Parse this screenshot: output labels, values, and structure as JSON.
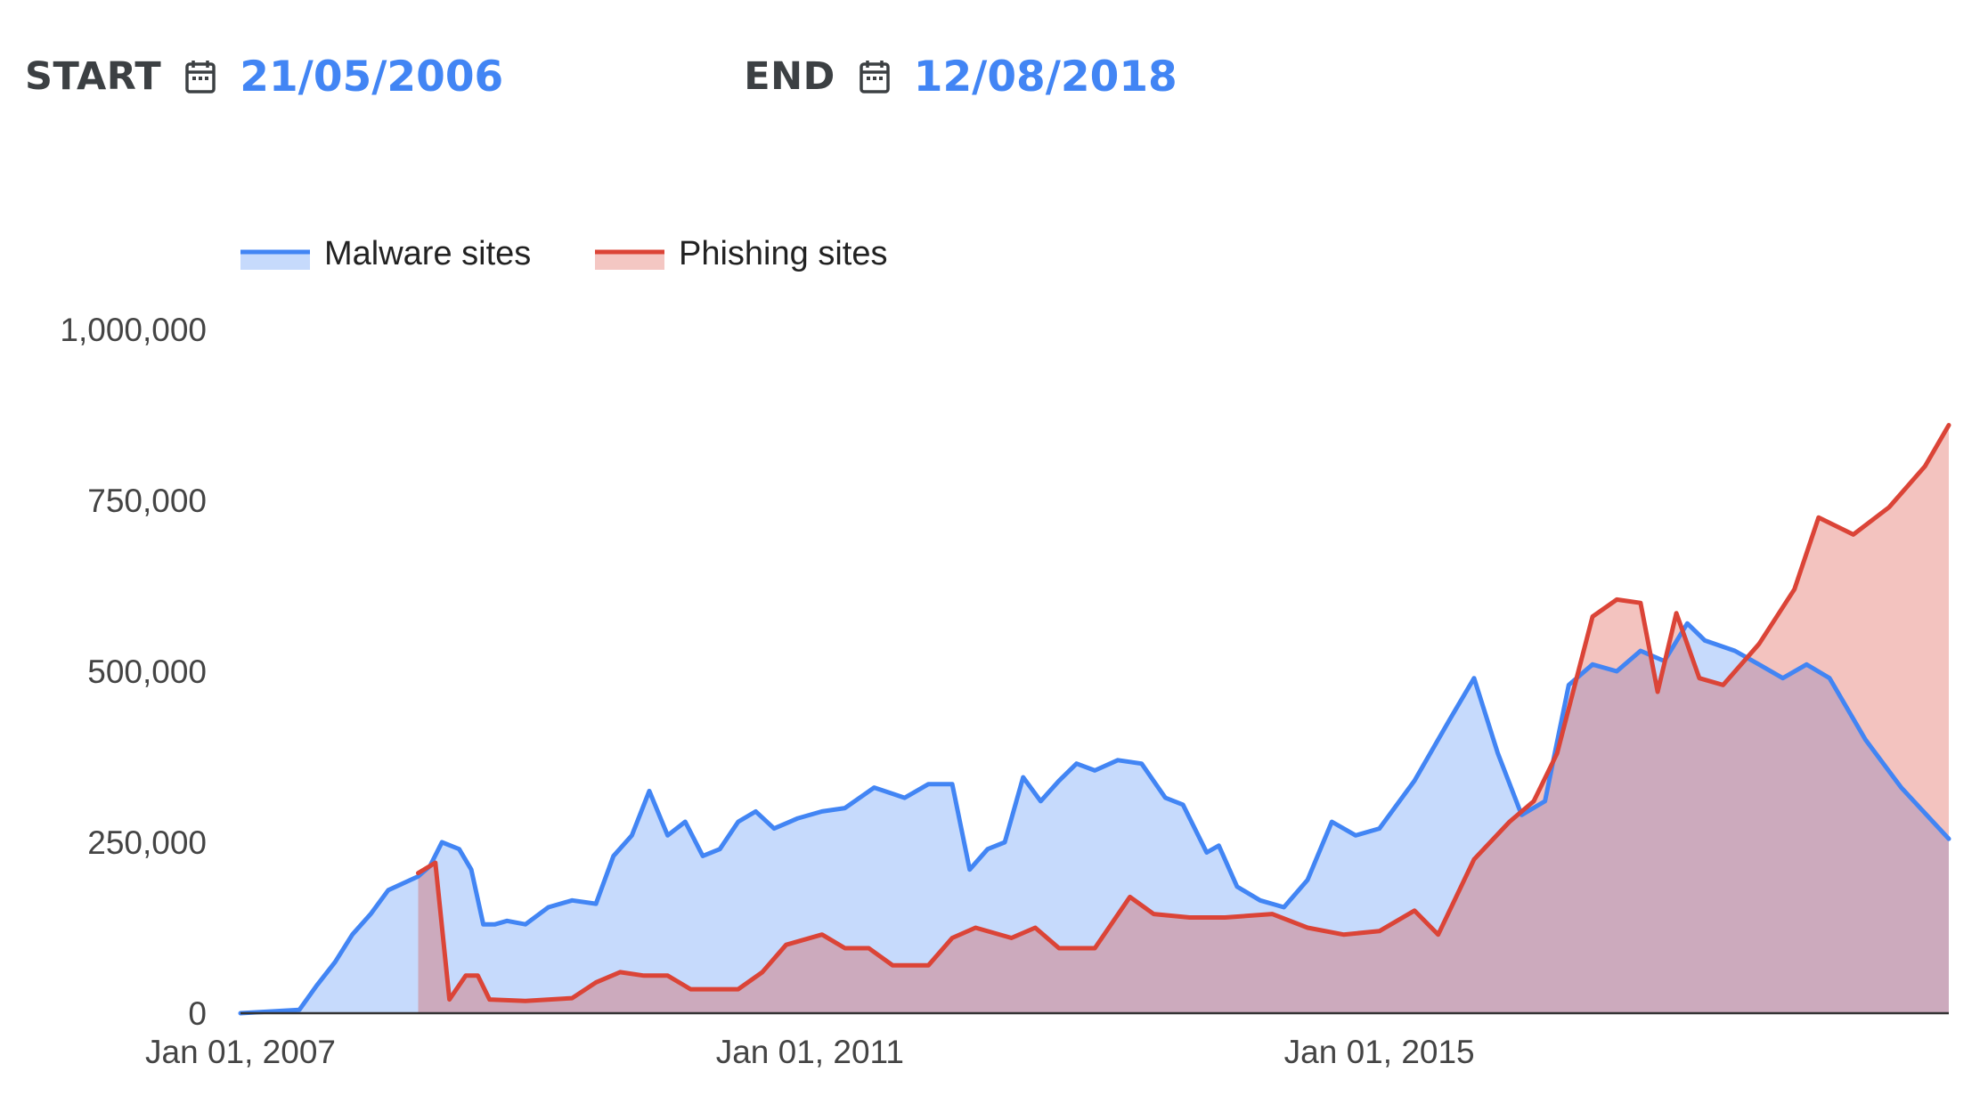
{
  "controls": {
    "start_label": "START",
    "start_value": "21/05/2006",
    "end_label": "END",
    "end_value": "12/08/2018",
    "calendar_icon": "calendar-icon"
  },
  "colors": {
    "malware": "#4285f4",
    "phishing": "#db4437",
    "date_value": "#4285f4"
  },
  "chart_data": {
    "type": "area",
    "legend_position": "top-left",
    "grid": false,
    "ylim": [
      0,
      1000000
    ],
    "y_ticks": [
      0,
      250000,
      500000,
      750000,
      1000000
    ],
    "y_tick_labels": [
      "0",
      "250,000",
      "500,000",
      "750,000",
      "1,000,000"
    ],
    "x_ticks": [
      "2007-01-01",
      "2011-01-01",
      "2015-01-01"
    ],
    "x_tick_labels": [
      "Jan 01, 2007",
      "Jan 01, 2011",
      "Jan 01, 2015"
    ],
    "x_range": [
      "2007-01-01",
      "2019-01-01"
    ],
    "series": [
      {
        "name": "Malware sites",
        "color": "#4285f4",
        "points": [
          [
            "2007-01-01",
            0
          ],
          [
            "2007-06-01",
            5000
          ],
          [
            "2007-07-15",
            40000
          ],
          [
            "2007-09-01",
            75000
          ],
          [
            "2007-10-15",
            115000
          ],
          [
            "2007-12-01",
            145000
          ],
          [
            "2008-01-15",
            180000
          ],
          [
            "2008-04-01",
            200000
          ],
          [
            "2008-05-01",
            215000
          ],
          [
            "2008-06-01",
            250000
          ],
          [
            "2008-07-15",
            240000
          ],
          [
            "2008-08-15",
            210000
          ],
          [
            "2008-09-15",
            130000
          ],
          [
            "2008-10-15",
            130000
          ],
          [
            "2008-11-15",
            135000
          ],
          [
            "2009-01-01",
            130000
          ],
          [
            "2009-03-01",
            155000
          ],
          [
            "2009-05-01",
            165000
          ],
          [
            "2009-07-01",
            160000
          ],
          [
            "2009-08-15",
            230000
          ],
          [
            "2009-10-01",
            260000
          ],
          [
            "2009-11-15",
            325000
          ],
          [
            "2010-01-01",
            260000
          ],
          [
            "2010-02-15",
            280000
          ],
          [
            "2010-04-01",
            230000
          ],
          [
            "2010-05-15",
            240000
          ],
          [
            "2010-07-01",
            280000
          ],
          [
            "2010-08-15",
            295000
          ],
          [
            "2010-10-01",
            270000
          ],
          [
            "2010-12-01",
            285000
          ],
          [
            "2011-02-01",
            295000
          ],
          [
            "2011-04-01",
            300000
          ],
          [
            "2011-06-15",
            330000
          ],
          [
            "2011-09-01",
            315000
          ],
          [
            "2011-11-01",
            335000
          ],
          [
            "2012-01-01",
            335000
          ],
          [
            "2012-02-15",
            210000
          ],
          [
            "2012-04-01",
            240000
          ],
          [
            "2012-05-15",
            250000
          ],
          [
            "2012-07-01",
            345000
          ],
          [
            "2012-08-15",
            310000
          ],
          [
            "2012-10-01",
            340000
          ],
          [
            "2012-11-15",
            365000
          ],
          [
            "2013-01-01",
            355000
          ],
          [
            "2013-03-01",
            370000
          ],
          [
            "2013-05-01",
            365000
          ],
          [
            "2013-07-01",
            315000
          ],
          [
            "2013-08-15",
            305000
          ],
          [
            "2013-10-15",
            235000
          ],
          [
            "2013-11-15",
            245000
          ],
          [
            "2014-01-01",
            185000
          ],
          [
            "2014-03-01",
            165000
          ],
          [
            "2014-05-01",
            155000
          ],
          [
            "2014-07-01",
            195000
          ],
          [
            "2014-09-01",
            280000
          ],
          [
            "2014-11-01",
            260000
          ],
          [
            "2015-01-01",
            270000
          ],
          [
            "2015-04-01",
            340000
          ],
          [
            "2015-07-01",
            430000
          ],
          [
            "2015-09-01",
            490000
          ],
          [
            "2015-11-01",
            380000
          ],
          [
            "2016-01-01",
            290000
          ],
          [
            "2016-03-01",
            310000
          ],
          [
            "2016-05-01",
            480000
          ],
          [
            "2016-07-01",
            510000
          ],
          [
            "2016-09-01",
            500000
          ],
          [
            "2016-11-01",
            530000
          ],
          [
            "2017-01-01",
            515000
          ],
          [
            "2017-03-01",
            570000
          ],
          [
            "2017-04-15",
            545000
          ],
          [
            "2017-07-01",
            530000
          ],
          [
            "2017-09-01",
            510000
          ],
          [
            "2017-11-01",
            490000
          ],
          [
            "2018-01-01",
            510000
          ],
          [
            "2018-03-01",
            490000
          ],
          [
            "2018-06-01",
            400000
          ],
          [
            "2018-09-01",
            330000
          ],
          [
            "2019-01-01",
            255000
          ]
        ]
      },
      {
        "name": "Phishing sites",
        "color": "#db4437",
        "points": [
          [
            "2008-04-01",
            205000
          ],
          [
            "2008-05-15",
            220000
          ],
          [
            "2008-06-20",
            20000
          ],
          [
            "2008-08-01",
            55000
          ],
          [
            "2008-09-01",
            55000
          ],
          [
            "2008-10-01",
            20000
          ],
          [
            "2009-01-01",
            18000
          ],
          [
            "2009-05-01",
            22000
          ],
          [
            "2009-07-01",
            45000
          ],
          [
            "2009-09-01",
            60000
          ],
          [
            "2009-11-01",
            55000
          ],
          [
            "2010-01-01",
            55000
          ],
          [
            "2010-03-01",
            35000
          ],
          [
            "2010-07-01",
            35000
          ],
          [
            "2010-09-01",
            60000
          ],
          [
            "2010-11-01",
            100000
          ],
          [
            "2011-02-01",
            115000
          ],
          [
            "2011-04-01",
            95000
          ],
          [
            "2011-06-01",
            95000
          ],
          [
            "2011-08-01",
            70000
          ],
          [
            "2011-11-01",
            70000
          ],
          [
            "2012-01-01",
            110000
          ],
          [
            "2012-03-01",
            125000
          ],
          [
            "2012-06-01",
            110000
          ],
          [
            "2012-08-01",
            125000
          ],
          [
            "2012-10-01",
            95000
          ],
          [
            "2013-01-01",
            95000
          ],
          [
            "2013-04-01",
            170000
          ],
          [
            "2013-06-01",
            145000
          ],
          [
            "2013-09-01",
            140000
          ],
          [
            "2013-12-01",
            140000
          ],
          [
            "2014-04-01",
            145000
          ],
          [
            "2014-07-01",
            125000
          ],
          [
            "2014-10-01",
            115000
          ],
          [
            "2015-01-01",
            120000
          ],
          [
            "2015-04-01",
            150000
          ],
          [
            "2015-06-01",
            115000
          ],
          [
            "2015-09-01",
            225000
          ],
          [
            "2015-12-01",
            280000
          ],
          [
            "2016-02-01",
            310000
          ],
          [
            "2016-04-01",
            380000
          ],
          [
            "2016-07-01",
            580000
          ],
          [
            "2016-09-01",
            605000
          ],
          [
            "2016-11-01",
            600000
          ],
          [
            "2016-12-15",
            470000
          ],
          [
            "2017-02-01",
            585000
          ],
          [
            "2017-04-01",
            490000
          ],
          [
            "2017-06-01",
            480000
          ],
          [
            "2017-09-01",
            540000
          ],
          [
            "2017-12-01",
            620000
          ],
          [
            "2018-02-01",
            725000
          ],
          [
            "2018-05-01",
            700000
          ],
          [
            "2018-08-01",
            740000
          ],
          [
            "2018-11-01",
            800000
          ],
          [
            "2019-01-01",
            860000
          ]
        ]
      }
    ]
  }
}
